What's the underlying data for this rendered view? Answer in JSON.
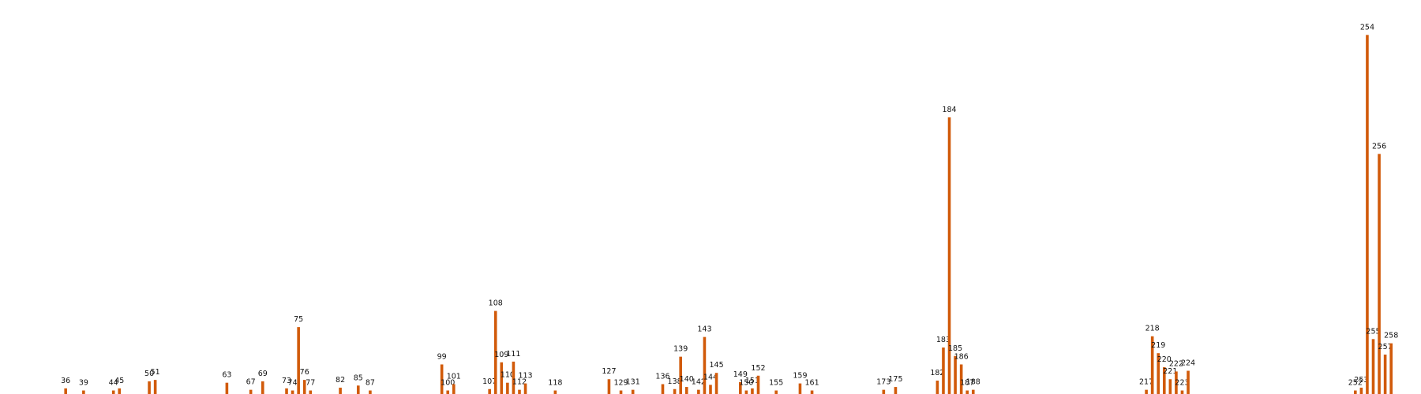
{
  "chart_data": {
    "type": "bar",
    "title": "",
    "xlabel": "",
    "ylabel": "",
    "x": [
      36,
      39,
      44,
      45,
      50,
      51,
      63,
      67,
      69,
      73,
      74,
      75,
      76,
      77,
      82,
      85,
      87,
      99,
      100,
      101,
      107,
      108,
      109,
      110,
      111,
      112,
      113,
      118,
      127,
      129,
      131,
      136,
      138,
      139,
      140,
      142,
      143,
      144,
      145,
      149,
      150,
      151,
      152,
      155,
      159,
      161,
      173,
      175,
      182,
      183,
      184,
      185,
      186,
      187,
      188,
      217,
      218,
      219,
      220,
      221,
      222,
      223,
      224,
      252,
      253,
      254,
      255,
      256,
      257,
      258
    ],
    "values": [
      0.8,
      0.5,
      0.5,
      0.8,
      1.8,
      2.0,
      1.6,
      0.6,
      1.8,
      0.8,
      0.5,
      9.5,
      2.0,
      0.5,
      0.9,
      1.2,
      0.5,
      4.2,
      0.5,
      1.4,
      0.7,
      11.8,
      4.5,
      1.6,
      4.6,
      0.6,
      1.5,
      0.5,
      2.1,
      0.5,
      0.6,
      1.4,
      0.7,
      5.3,
      1.0,
      0.6,
      8.1,
      1.3,
      3.0,
      1.7,
      0.5,
      0.8,
      2.6,
      0.5,
      1.5,
      0.5,
      0.6,
      1.0,
      1.9,
      6.6,
      39.3,
      5.4,
      4.2,
      0.5,
      0.6,
      0.6,
      8.2,
      5.8,
      3.8,
      2.1,
      3.2,
      0.5,
      3.3,
      0.5,
      0.9,
      51.0,
      7.8,
      34.1,
      5.6,
      7.2
    ],
    "labels": [
      "36",
      "39",
      "44",
      "45",
      "50",
      "51",
      "63",
      "67",
      "69",
      "73",
      "74",
      "75",
      "76",
      "77",
      "82",
      "85",
      "87",
      "99",
      "100",
      "101",
      "107",
      "108",
      "109",
      "110",
      "111",
      "112",
      "113",
      "118",
      "127",
      "129",
      "131",
      "136",
      "138",
      "139",
      "140",
      "142",
      "143",
      "144",
      "145",
      "149",
      "150",
      "151",
      "152",
      "155",
      "159",
      "161",
      "173",
      "175",
      "182",
      "183",
      "184",
      "185",
      "186",
      "187",
      "188",
      "217",
      "218",
      "219",
      "220",
      "221",
      "222",
      "223",
      "224",
      "252",
      "253",
      "254",
      "255",
      "256",
      "257",
      "258"
    ],
    "xlim": [
      25,
      263
    ],
    "ylim": [
      0,
      53.5
    ],
    "bar_color": "#d15a0a",
    "label_color": "#111111",
    "axes_visible": false,
    "grid": false,
    "legend": "none"
  }
}
